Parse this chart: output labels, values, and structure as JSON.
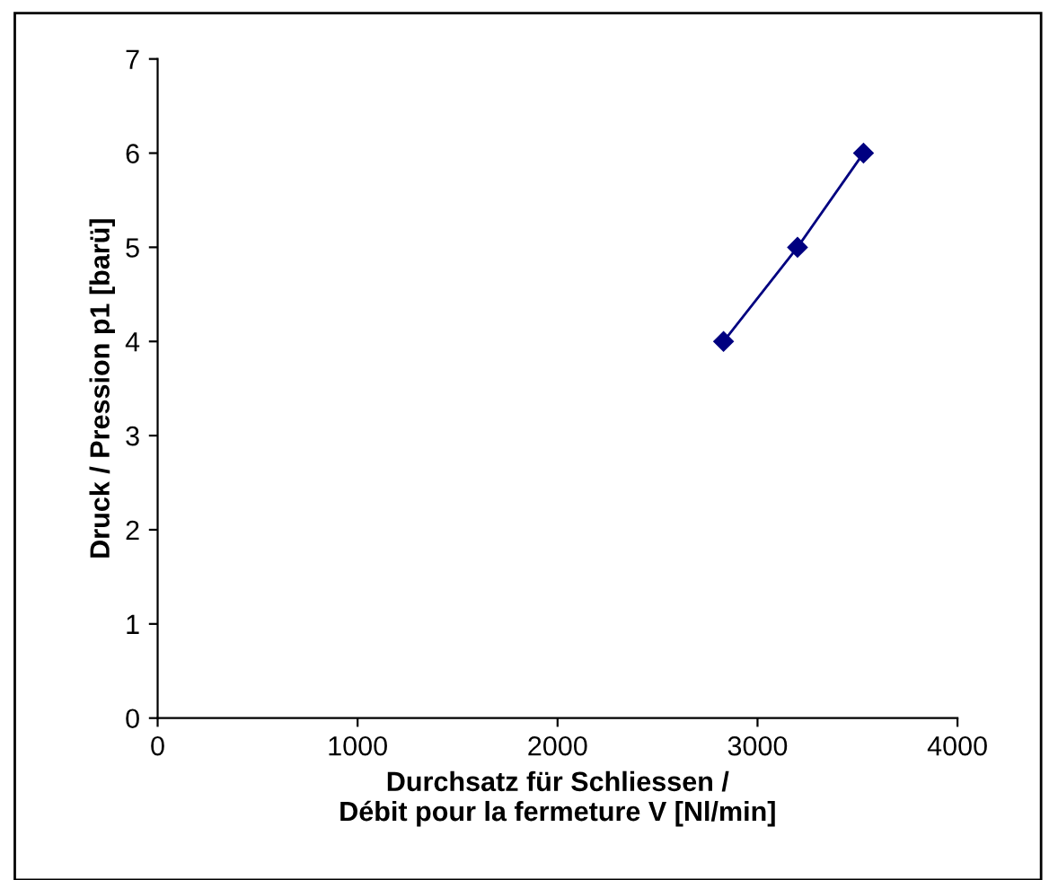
{
  "chart_data": {
    "type": "line",
    "xlabel": "Durchsatz für Schliessen /\nDébit pour la fermeture V [Nl/min]",
    "ylabel": "Druck / Pression p1 [barü]",
    "x": [
      2830,
      3200,
      3530
    ],
    "series": [
      {
        "color": "#000080",
        "values": [
          4,
          5,
          6
        ]
      }
    ],
    "xlim": [
      0,
      4000
    ],
    "xticks": [
      0,
      1000,
      2000,
      3000,
      4000
    ],
    "ylim": [
      0,
      7
    ],
    "yticks": [
      0,
      1,
      2,
      3,
      4,
      5,
      6,
      7
    ],
    "grid": false,
    "legend": false,
    "marker": "diamond",
    "line_style": "solid"
  }
}
